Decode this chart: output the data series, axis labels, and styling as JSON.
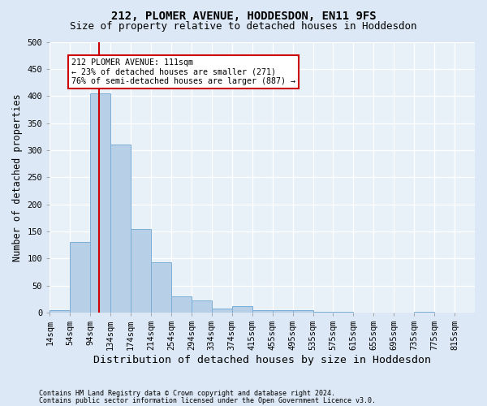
{
  "title": "212, PLOMER AVENUE, HODDESDON, EN11 9FS",
  "subtitle": "Size of property relative to detached houses in Hoddesdon",
  "xlabel": "Distribution of detached houses by size in Hoddesdon",
  "ylabel": "Number of detached properties",
  "footer_line1": "Contains HM Land Registry data © Crown copyright and database right 2024.",
  "footer_line2": "Contains public sector information licensed under the Open Government Licence v3.0.",
  "bin_labels": [
    "14sqm",
    "54sqm",
    "94sqm",
    "134sqm",
    "174sqm",
    "214sqm",
    "254sqm",
    "294sqm",
    "334sqm",
    "374sqm",
    "415sqm",
    "455sqm",
    "495sqm",
    "535sqm",
    "575sqm",
    "615sqm",
    "655sqm",
    "695sqm",
    "735sqm",
    "775sqm",
    "815sqm"
  ],
  "bar_heights": [
    5,
    130,
    405,
    310,
    155,
    93,
    30,
    22,
    8,
    12,
    5,
    5,
    4,
    1,
    1,
    0,
    0,
    0,
    1,
    0,
    0
  ],
  "bar_color": "#b8cfe8",
  "bar_edge_color": "#7aaed6",
  "property_line_index": 2.425,
  "property_line_color": "#cc0000",
  "annotation_text": "212 PLOMER AVENUE: 111sqm\n← 23% of detached houses are smaller (271)\n76% of semi-detached houses are larger (887) →",
  "annotation_box_color": "#ffffff",
  "annotation_box_edge": "#cc0000",
  "ylim": [
    0,
    500
  ],
  "bg_color": "#dce8f5",
  "plot_bg_color": "#e8f0f8",
  "grid_color": "#ffffff",
  "title_fontsize": 10,
  "subtitle_fontsize": 9,
  "axis_label_fontsize": 8.5,
  "tick_fontsize": 7.5,
  "footer_fontsize": 6.0
}
